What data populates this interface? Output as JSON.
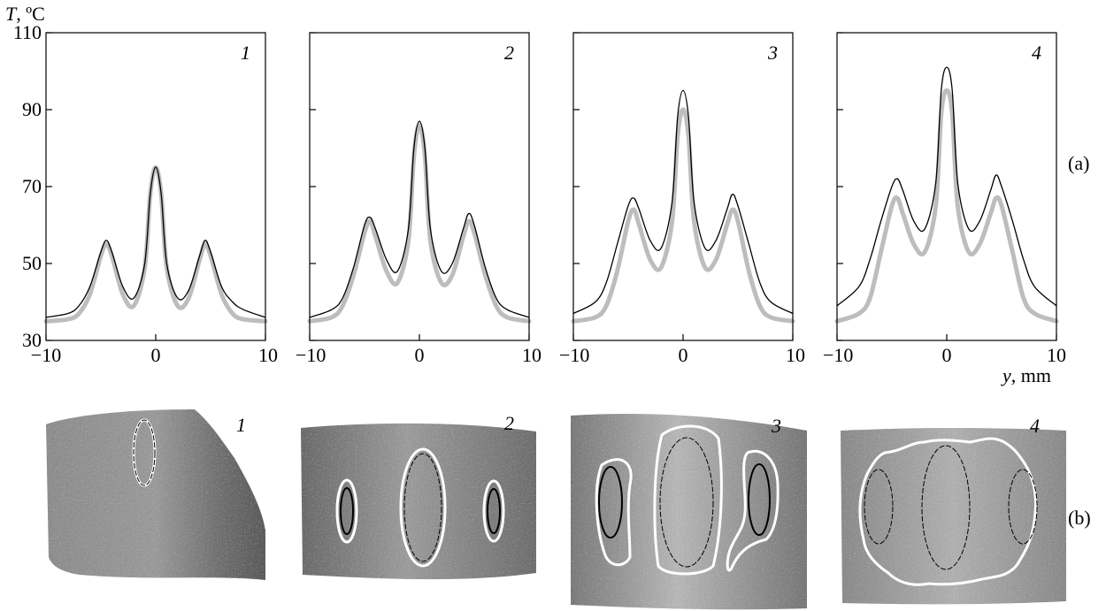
{
  "figure": {
    "row_a_label": "(a)",
    "row_b_label": "(b)",
    "y_axis_label_var": "T",
    "y_axis_label_unit": ", ºC",
    "x_axis_label_var": "y",
    "x_axis_label_unit": ", mm",
    "colors": {
      "black_curve": "#000000",
      "gray_curve": "#bdbdbd",
      "tissue_dark": "#6f6f6f",
      "tissue_light": "#a8a8a8",
      "contour_white": "#ffffff",
      "contour_black": "#000000"
    }
  },
  "chart_data": [
    {
      "type": "line",
      "panel_label": "1",
      "xlim": [
        -10,
        10
      ],
      "ylim": [
        30,
        110
      ],
      "xticks": [
        -10,
        0,
        10
      ],
      "yticks": [
        30,
        50,
        70,
        90,
        110
      ],
      "ytick_labels_shown": true,
      "series": [
        {
          "style": "black-thin",
          "x": [
            -10,
            -8,
            -7,
            -6,
            -5,
            -4.5,
            -4,
            -3,
            -2,
            -1,
            -0.5,
            0,
            0.5,
            1,
            2,
            3,
            4,
            4.5,
            5,
            6,
            7,
            8,
            10
          ],
          "y": [
            36,
            37,
            39,
            44,
            53,
            56,
            53,
            44,
            41,
            50,
            68,
            75,
            68,
            50,
            41,
            43,
            52,
            56,
            53,
            44,
            40,
            38,
            36
          ]
        },
        {
          "style": "gray-thick",
          "x": [
            -10,
            -8,
            -7,
            -6,
            -5,
            -4.5,
            -4,
            -3,
            -2,
            -1,
            -0.5,
            0,
            0.5,
            1,
            2,
            3,
            4,
            4.5,
            5,
            6,
            7,
            8,
            10
          ],
          "y": [
            35,
            35.5,
            37,
            42,
            52,
            55,
            52,
            42,
            39,
            49,
            68,
            75,
            68,
            49,
            39,
            41,
            51,
            55,
            52,
            42,
            37,
            35.5,
            35
          ]
        }
      ]
    },
    {
      "type": "line",
      "panel_label": "2",
      "xlim": [
        -10,
        10
      ],
      "ylim": [
        30,
        110
      ],
      "xticks": [
        -10,
        0,
        10
      ],
      "yticks": [
        30,
        50,
        70,
        90,
        110
      ],
      "ytick_labels_shown": false,
      "series": [
        {
          "style": "black-thin",
          "x": [
            -10,
            -8,
            -7,
            -6,
            -5,
            -4.5,
            -4,
            -3,
            -2,
            -1,
            -0.5,
            0,
            0.5,
            1,
            2,
            3,
            4,
            4.5,
            5,
            6,
            7,
            8,
            10
          ],
          "y": [
            36,
            38,
            41,
            49,
            60,
            62,
            59,
            51,
            48,
            59,
            80,
            87,
            80,
            59,
            48,
            50,
            59,
            63,
            60,
            49,
            41,
            38,
            36
          ]
        },
        {
          "style": "gray-thick",
          "x": [
            -10,
            -8,
            -7,
            -6,
            -5,
            -4.5,
            -4,
            -3,
            -2,
            -1,
            -0.5,
            0,
            0.5,
            1,
            2,
            3,
            4,
            4.5,
            5,
            6,
            7,
            8,
            10
          ],
          "y": [
            35,
            36,
            39,
            47,
            58,
            61,
            57,
            48,
            45,
            56,
            78,
            86,
            78,
            56,
            45,
            47,
            57,
            61,
            58,
            47,
            39,
            36,
            35
          ]
        }
      ]
    },
    {
      "type": "line",
      "panel_label": "3",
      "xlim": [
        -10,
        10
      ],
      "ylim": [
        30,
        110
      ],
      "xticks": [
        -10,
        0,
        10
      ],
      "yticks": [
        30,
        50,
        70,
        90,
        110
      ],
      "ytick_labels_shown": false,
      "series": [
        {
          "style": "black-thin",
          "x": [
            -10,
            -8,
            -7,
            -6,
            -5,
            -4.5,
            -4,
            -3,
            -2,
            -1,
            -0.5,
            0,
            0.5,
            1,
            2,
            3,
            4,
            4.5,
            5,
            6,
            7,
            8,
            10
          ],
          "y": [
            37,
            40,
            45,
            55,
            65,
            67,
            64,
            56,
            54,
            66,
            88,
            95,
            88,
            66,
            54,
            56,
            64,
            68,
            65,
            55,
            45,
            40,
            37
          ]
        },
        {
          "style": "gray-thick",
          "x": [
            -10,
            -8,
            -7,
            -6,
            -5,
            -4.5,
            -4,
            -3,
            -2,
            -1,
            -0.5,
            0,
            0.5,
            1,
            2,
            3,
            4,
            4.5,
            5,
            6,
            7,
            8,
            10
          ],
          "y": [
            35,
            36,
            39,
            48,
            61,
            64,
            60,
            51,
            49,
            61,
            83,
            90,
            83,
            61,
            49,
            51,
            60,
            64,
            61,
            48,
            39,
            36,
            35
          ]
        }
      ]
    },
    {
      "type": "line",
      "panel_label": "4",
      "xlim": [
        -10,
        10
      ],
      "ylim": [
        30,
        110
      ],
      "xticks": [
        -10,
        0,
        10
      ],
      "yticks": [
        30,
        50,
        70,
        90,
        110
      ],
      "ytick_labels_shown": false,
      "series": [
        {
          "style": "black-thin",
          "x": [
            -10,
            -8,
            -7,
            -6,
            -5,
            -4.5,
            -4,
            -3,
            -2,
            -1,
            -0.5,
            0,
            0.5,
            1,
            2,
            3,
            4,
            4.5,
            5,
            6,
            7,
            8,
            10
          ],
          "y": [
            39,
            44,
            51,
            61,
            70,
            72,
            69,
            61,
            59,
            71,
            95,
            101,
            95,
            71,
            59,
            61,
            69,
            73,
            70,
            61,
            51,
            44,
            39
          ]
        },
        {
          "style": "gray-thick",
          "x": [
            -10,
            -8,
            -7,
            -6,
            -5,
            -4.5,
            -4,
            -3,
            -2,
            -1,
            -0.5,
            0,
            0.5,
            1,
            2,
            3,
            4,
            4.5,
            5,
            6,
            7,
            8,
            10
          ],
          "y": [
            35,
            37,
            41,
            53,
            65,
            67,
            63,
            55,
            53,
            65,
            89,
            95,
            89,
            65,
            53,
            55,
            63,
            67,
            65,
            53,
            41,
            37,
            35
          ]
        }
      ]
    }
  ],
  "photos": [
    {
      "panel_label": "1"
    },
    {
      "panel_label": "2"
    },
    {
      "panel_label": "3"
    },
    {
      "panel_label": "4"
    }
  ]
}
